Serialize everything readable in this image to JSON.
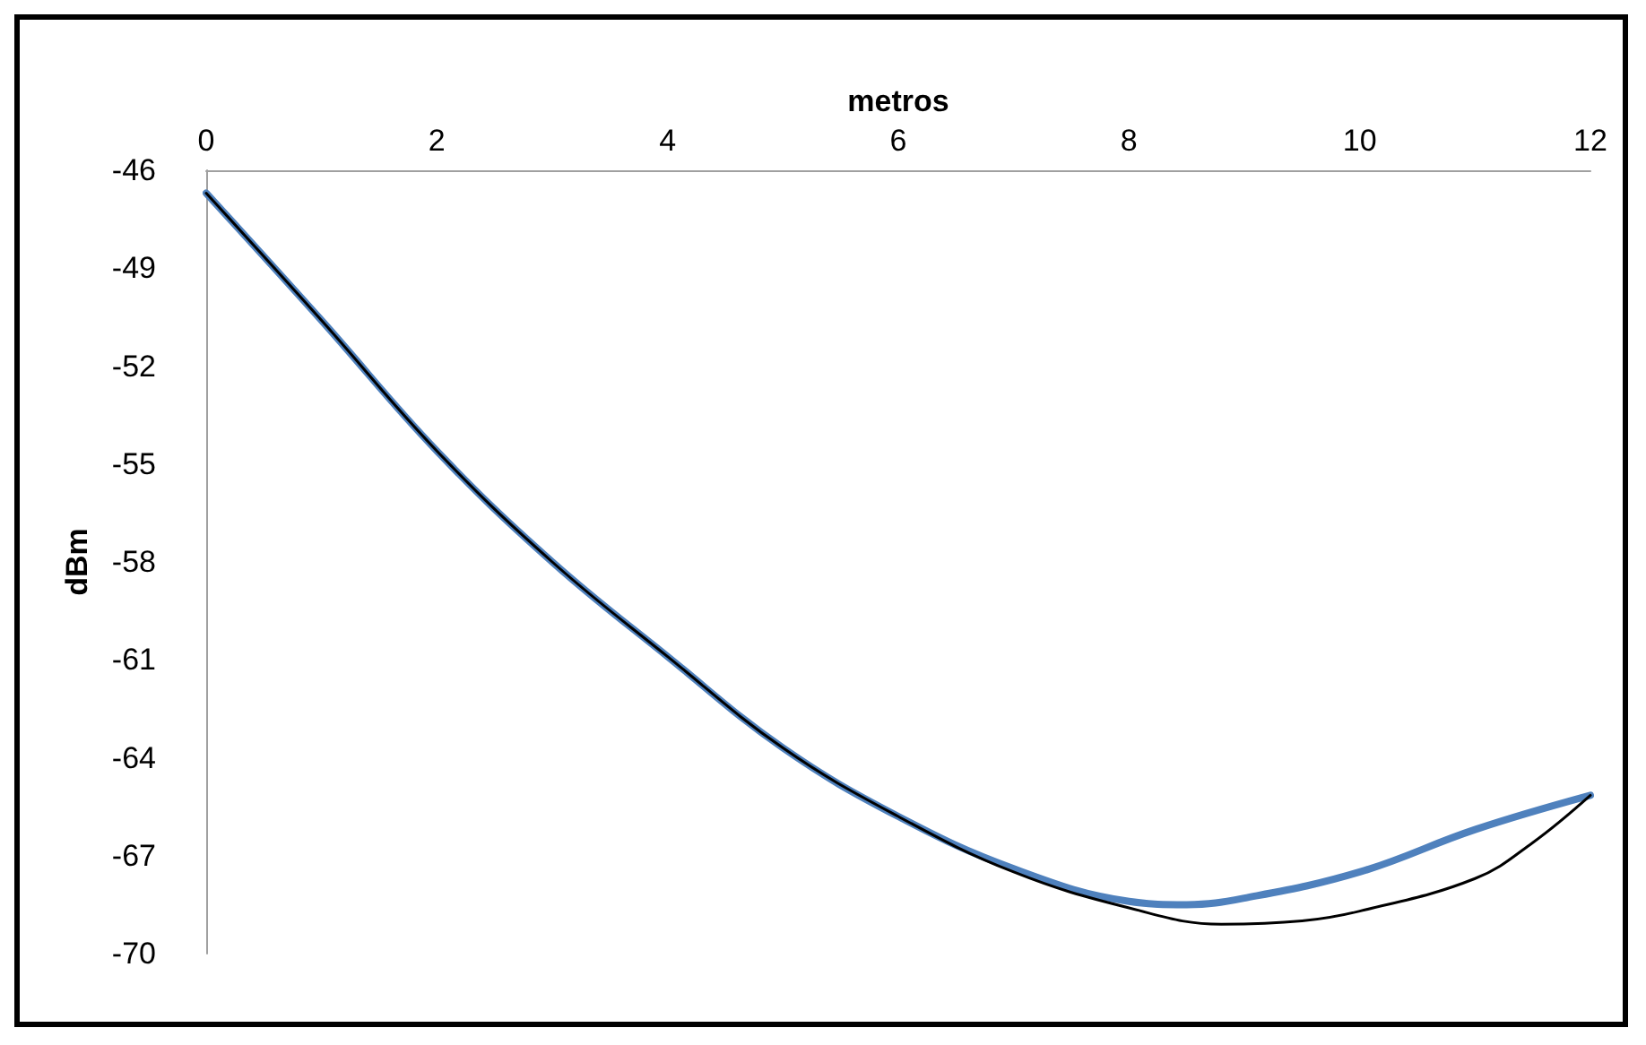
{
  "chart_data": {
    "type": "line",
    "xlabel": "metros",
    "ylabel": "dBm",
    "xlim": [
      0,
      12
    ],
    "xticks": [
      0,
      2,
      4,
      6,
      8,
      10,
      12
    ],
    "ylim": [
      -70,
      -46
    ],
    "yticks": [
      -46,
      -49,
      -52,
      -55,
      -58,
      -61,
      -64,
      -67,
      -70
    ],
    "grid": false,
    "marker": "none",
    "line_style": "solid",
    "series": [
      {
        "color": "#4f81bd",
        "x": [
          0,
          1,
          2,
          3,
          4,
          5,
          6,
          7,
          8,
          8.5,
          9,
          10,
          11,
          12
        ],
        "values": [
          -46.7,
          -50.6,
          -54.6,
          -58.0,
          -60.9,
          -63.7,
          -65.8,
          -67.4,
          -68.4,
          -68.5,
          -68.3,
          -67.5,
          -66.2,
          -65.15
        ]
      },
      {
        "color": "#000000",
        "x": [
          0,
          1,
          2,
          3,
          4,
          5,
          6,
          7,
          8,
          8.8,
          9.5,
          10,
          11,
          11.5,
          12
        ],
        "values": [
          -46.7,
          -50.6,
          -54.6,
          -58.0,
          -60.9,
          -63.7,
          -65.8,
          -67.5,
          -68.6,
          -69.1,
          -69.0,
          -68.7,
          -67.7,
          -66.6,
          -65.15
        ]
      }
    ]
  }
}
